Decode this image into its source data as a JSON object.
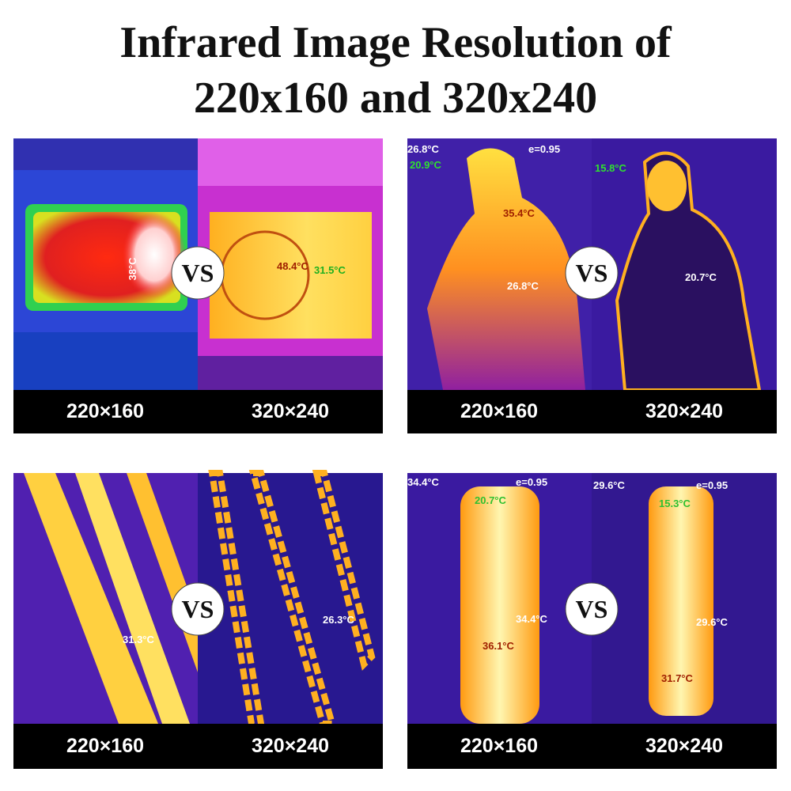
{
  "title": {
    "lines": [
      "Infrared Image Resolution of",
      "220x160 and 320x240"
    ]
  },
  "badge": "VS",
  "panels": [
    {
      "left": {
        "label": "220×160",
        "readouts": [
          "38°C"
        ]
      },
      "right": {
        "label": "320×240",
        "readouts": [
          "48.4°C",
          "31.5°C"
        ]
      }
    },
    {
      "left": {
        "label": "220×160",
        "readouts": [
          "26.8°C",
          "e=0.95",
          "20.9°C",
          "35.4°C",
          "26.8°C"
        ]
      },
      "right": {
        "label": "320×240",
        "readouts": [
          "15.8°C",
          "20.7°C"
        ]
      }
    },
    {
      "left": {
        "label": "220×160",
        "readouts": [
          "31.3°C"
        ]
      },
      "right": {
        "label": "320×240",
        "readouts": [
          "26.3°C"
        ]
      }
    },
    {
      "left": {
        "label": "220×160",
        "readouts": [
          "34.4°C",
          "e=0.95",
          "20.7°C",
          "34.4°C",
          "36.1°C"
        ]
      },
      "right": {
        "label": "320×240",
        "readouts": [
          "29.6°C",
          "e=0.95",
          "15.3°C",
          "29.6°C",
          "31.7°C"
        ]
      }
    }
  ]
}
